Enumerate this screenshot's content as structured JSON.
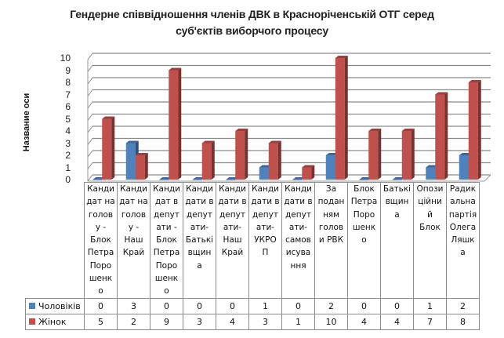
{
  "chart_data": {
    "type": "bar",
    "subtype": "3d-clustered-column-with-data-table",
    "title": "Гендерне співвідношення членів ДВК в Красноріченській ОТГ серед суб'єктів виборчого процесу",
    "title_lines": [
      "Гендерне співвідношення членів ДВК в Красноріченській ОТГ серед",
      "суб'єктів виборчого процесу"
    ],
    "xlabel": "",
    "ylabel": "Название оси",
    "ylim": [
      0,
      10
    ],
    "yticks": [
      "0",
      "1",
      "2",
      "3",
      "4",
      "5",
      "6",
      "7",
      "8",
      "9",
      "10"
    ],
    "grid": true,
    "legend_position": "data-table",
    "categories": [
      "Кандидат на голову - Блок Петра Порошенко",
      "Кандидат на голову - Наш Край",
      "Кандидат в депутати - Блок Петра Порошенко",
      "Кандидати в депутати-Батьківщина",
      "Кандидати в депутати-Наш Край",
      "Кандидати в депутати-УКРОП",
      "Кандидати в депутати-самовисування",
      "За поданням голови РВК",
      "Блок Петра Порошенко",
      "Батьківщина",
      "Опозиційний Блок",
      "Радикальна партія Олега Ляшка"
    ],
    "category_labels_wrapped": [
      "Канди дат на голов у - Блок Петра Поро шенк о",
      "Канди дат на голов у - Наш Край",
      "Канди дат в депут ати - Блок Петра Поро шенк о",
      "Канди дати в депут ати- Батьк ївщин а",
      "Канди дати в депут ати- Наш Край",
      "Канди дати в депут ати- УКРО П",
      "Канди дати в депут ати- самов исува ння",
      "За подан ням голов и РВК",
      "Блок Петра Поро шенк о",
      "Батькі вщин а",
      "Опози ційни й Блок",
      "Радик альна партія Олега Ляшк а"
    ],
    "series": [
      {
        "name": "Чоловіків",
        "color": "#4f81bd",
        "values": [
          0,
          3,
          0,
          0,
          0,
          1,
          0,
          2,
          0,
          0,
          1,
          2
        ]
      },
      {
        "name": "Жінок",
        "color": "#c0504d",
        "values": [
          5,
          2,
          9,
          3,
          4,
          3,
          1,
          10,
          4,
          4,
          7,
          8
        ]
      }
    ]
  },
  "table": {
    "category_lines": [
      [
        "Канди",
        "дат на",
        "голов",
        "у -",
        "Блок",
        "Петра",
        "Поро",
        "шенк",
        "о"
      ],
      [
        "Канди",
        "дат на",
        "голов",
        "у -",
        "Наш",
        "Край"
      ],
      [
        "Канди",
        "дат в",
        "депут",
        "ати -",
        "Блок",
        "Петра",
        "Поро",
        "шенк",
        "о"
      ],
      [
        "Канди",
        "дати в",
        "депут",
        "ати-",
        "Батькі",
        "вщин",
        "а"
      ],
      [
        "Канди",
        "дати в",
        "депут",
        "ати-",
        "Наш",
        "Край"
      ],
      [
        "Канди",
        "дати в",
        "депут",
        "ати-",
        "УКРО",
        "П"
      ],
      [
        "Канди",
        "дати в",
        "депут",
        "ати-",
        "самов",
        "исува",
        "ння"
      ],
      [
        "За",
        "подан",
        "ням",
        "голов",
        "и РВК"
      ],
      [
        "Блок",
        "Петра",
        "Поро",
        "шенк",
        "о"
      ],
      [
        "Батькі",
        "вщин",
        "а"
      ],
      [
        "Опози",
        "ційни",
        "й",
        "Блок"
      ],
      [
        "Радик",
        "альна",
        "партія",
        "Олега",
        "Ляшк",
        "а"
      ]
    ],
    "rows": [
      {
        "legend": "Чоловіків",
        "color": "#4f81bd",
        "values": [
          "0",
          "3",
          "0",
          "0",
          "0",
          "1",
          "0",
          "2",
          "0",
          "0",
          "1",
          "2"
        ]
      },
      {
        "legend": "Жінок",
        "color": "#c0504d",
        "values": [
          "5",
          "2",
          "9",
          "3",
          "4",
          "3",
          "1",
          "10",
          "4",
          "4",
          "7",
          "8"
        ]
      }
    ]
  }
}
